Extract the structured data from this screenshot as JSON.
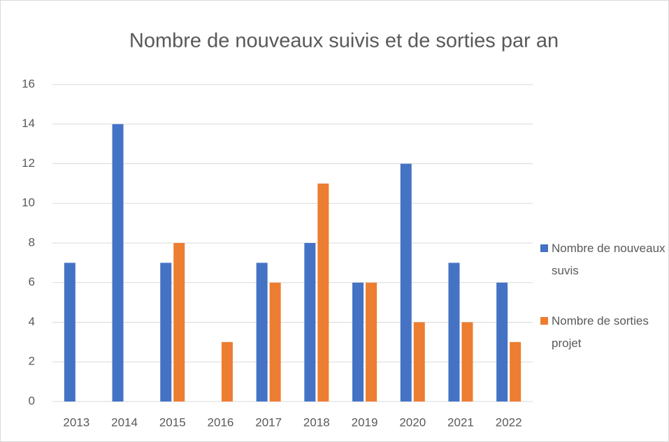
{
  "chart_data": {
    "type": "bar",
    "title": "Nombre de nouveaux suivis et de sorties par an",
    "categories": [
      "2013",
      "2014",
      "2015",
      "2016",
      "2017",
      "2018",
      "2019",
      "2020",
      "2021",
      "2022"
    ],
    "series": [
      {
        "name": "Nombre de nouveaux suvis",
        "color": "#4472c4",
        "values": [
          7,
          14,
          7,
          null,
          7,
          8,
          6,
          12,
          7,
          6
        ]
      },
      {
        "name": "Nombre de sorties projet",
        "color": "#ed7d31",
        "values": [
          null,
          null,
          8,
          3,
          6,
          11,
          6,
          4,
          4,
          3
        ]
      }
    ],
    "ylim": [
      0,
      16
    ],
    "yticks": [
      0,
      2,
      4,
      6,
      8,
      10,
      12,
      14,
      16
    ],
    "grid": true,
    "legend": "right"
  }
}
